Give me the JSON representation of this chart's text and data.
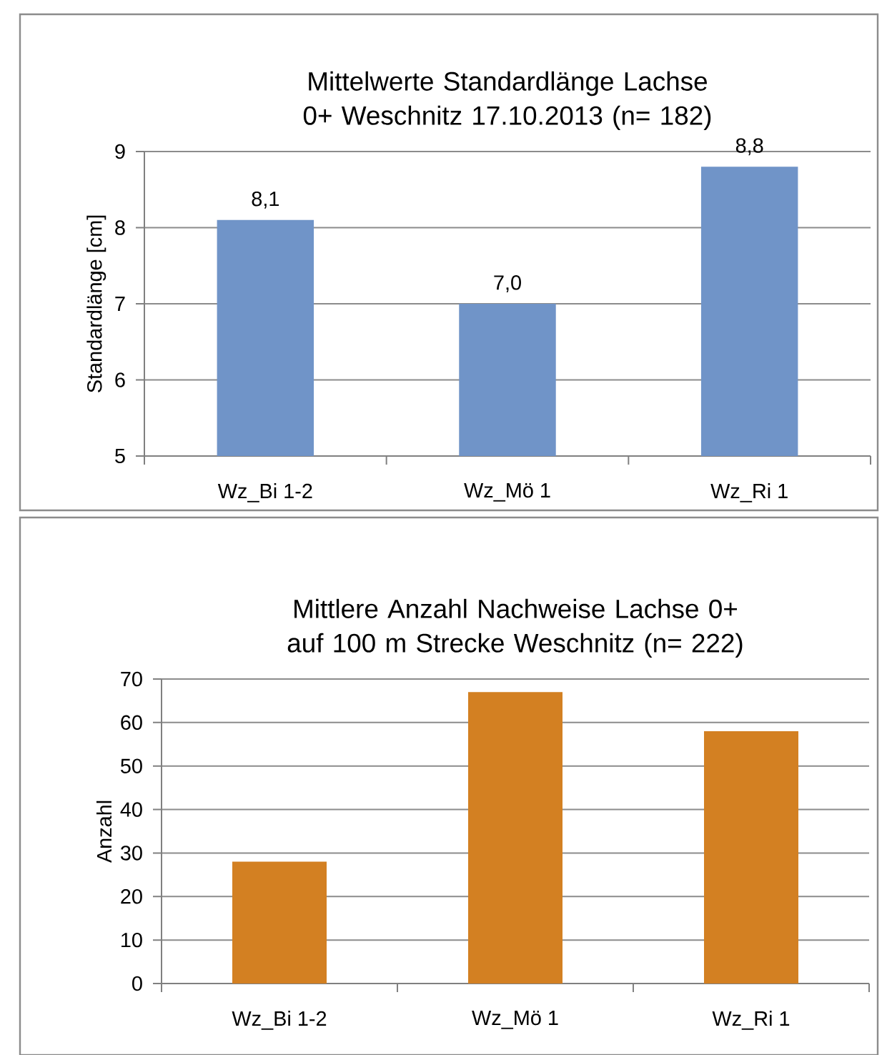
{
  "chart_data": [
    {
      "type": "bar",
      "title": "Mittelwerte Standardlänge Lachse 0+ Weschnitz 17.10.2013 (n= 182)",
      "ylabel": "Standardlänge [cm]",
      "categories": [
        "Wz_Bi 1-2",
        "Wz_Mö 1",
        "Wz_Ri 1"
      ],
      "values": [
        8.1,
        7.0,
        8.8
      ],
      "value_labels": [
        "8,1",
        "7,0",
        "8,8"
      ],
      "color": "#7094c8",
      "ylim": [
        5,
        9
      ],
      "yticks": [
        5,
        6,
        7,
        8,
        9
      ],
      "grid": "y"
    },
    {
      "type": "bar",
      "title": "Mittlere Anzahl Nachweise Lachse 0+ auf 100 m Strecke Weschnitz (n= 222)",
      "ylabel": "Anzahl",
      "categories": [
        "Wz_Bi 1-2",
        "Wz_Mö 1",
        "Wz_Ri 1"
      ],
      "values": [
        28,
        67,
        58
      ],
      "color": "#d38022",
      "ylim": [
        0,
        70
      ],
      "yticks": [
        0,
        10,
        20,
        30,
        40,
        50,
        60,
        70
      ],
      "grid": "y"
    }
  ]
}
